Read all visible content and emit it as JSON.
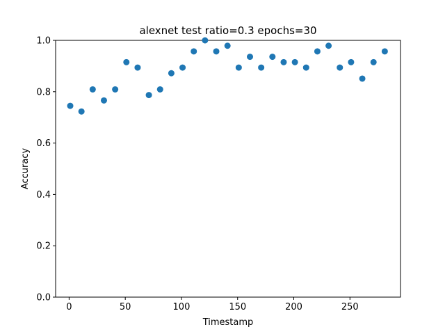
{
  "chart_data": {
    "type": "scatter",
    "title": "alexnet test ratio=0.3 epochs=30",
    "xlabel": "Timestamp",
    "ylabel": "Accuracy",
    "xlim": [
      -12,
      295
    ],
    "ylim": [
      0.0,
      1.0
    ],
    "xticks": [
      0,
      50,
      100,
      150,
      200,
      250
    ],
    "yticks": [
      0.0,
      0.2,
      0.4,
      0.6,
      0.8,
      1.0
    ],
    "xtick_labels": [
      "0",
      "50",
      "100",
      "150",
      "200",
      "250"
    ],
    "ytick_labels": [
      "0.0",
      "0.2",
      "0.4",
      "0.6",
      "0.8",
      "1.0"
    ],
    "grid": false,
    "marker_color": "#1f77b4",
    "series": [
      {
        "x": [
          1,
          11,
          21,
          31,
          41,
          51,
          61,
          71,
          81,
          91,
          101,
          111,
          121,
          131,
          141,
          151,
          161,
          171,
          181,
          191,
          201,
          211,
          221,
          231,
          241,
          251,
          261,
          271,
          281
        ],
        "y": [
          0.745,
          0.723,
          0.809,
          0.766,
          0.809,
          0.915,
          0.894,
          0.787,
          0.809,
          0.872,
          0.894,
          0.957,
          1.0,
          0.957,
          0.979,
          0.894,
          0.936,
          0.894,
          0.936,
          0.915,
          0.915,
          0.894,
          0.957,
          0.979,
          0.894,
          0.915,
          0.851,
          0.915,
          0.957
        ]
      }
    ]
  }
}
